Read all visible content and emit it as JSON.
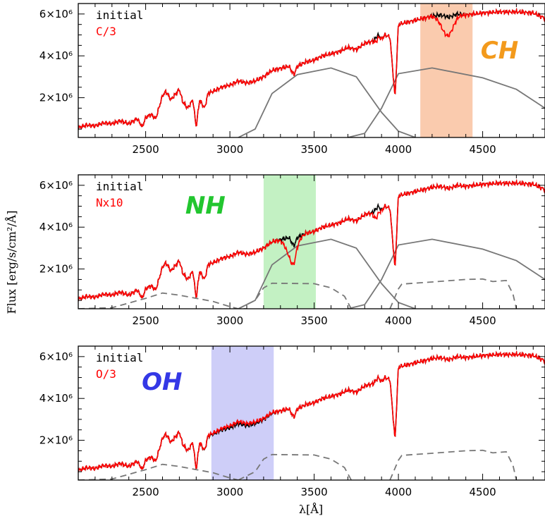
{
  "figure": {
    "ylabel": "Flux [erg/s/cm²/Å]",
    "xlabel": "λ[Å]"
  },
  "chart_data": [
    {
      "type": "line",
      "xlim": [
        2100,
        4870
      ],
      "ylim": [
        100000,
        6500000
      ],
      "xticks": [
        2500,
        3000,
        3500,
        4000,
        4500
      ],
      "yticks": [
        {
          "value": 2000000,
          "label": "2×10⁶"
        },
        {
          "value": 4000000,
          "label": "4×10⁶"
        },
        {
          "value": 6000000,
          "label": "6×10⁶"
        }
      ],
      "legend": [
        {
          "label": "initial",
          "color": "#000000"
        },
        {
          "label": "C/3",
          "color": "#ff0000"
        }
      ],
      "band": {
        "label": "CH",
        "x0": 4130,
        "x1": 4440,
        "color": "#f7a878",
        "label_color": "#f39a1c"
      },
      "mod": {
        "feature_x": 4290,
        "feature_w": 50,
        "depth": 900000,
        "feature2_x": 3870,
        "feature2_w": 15,
        "depth2": 200000
      },
      "filters": [
        {
          "style": "solid",
          "x": [
            3050,
            3150,
            3250,
            3400,
            3600,
            3750,
            3900,
            4000,
            4100
          ],
          "y": [
            100000,
            500000,
            2200000,
            3100000,
            3420000,
            3000000,
            1300000,
            400000,
            100000
          ]
        },
        {
          "style": "solid",
          "x": [
            3700,
            3800,
            3900,
            4000,
            4200,
            4500,
            4700,
            4870
          ],
          "y": [
            100000,
            300000,
            1500000,
            3150000,
            3420000,
            2950000,
            2400000,
            1500000
          ]
        }
      ]
    },
    {
      "type": "line",
      "xlim": [
        2100,
        4870
      ],
      "ylim": [
        100000,
        6500000
      ],
      "xticks": [
        2500,
        3000,
        3500,
        4000,
        4500
      ],
      "yticks": [
        {
          "value": 2000000,
          "label": "2×10⁶"
        },
        {
          "value": 4000000,
          "label": "4×10⁶"
        },
        {
          "value": 6000000,
          "label": "6×10⁶"
        }
      ],
      "legend": [
        {
          "label": "initial",
          "color": "#000000"
        },
        {
          "label": "Nx10",
          "color": "#ff0000"
        }
      ],
      "band": {
        "label": "NH",
        "x0": 3200,
        "x1": 3510,
        "color": "#9be89b",
        "label_color": "#22c62f"
      },
      "mod": {
        "feature_x": 3365,
        "feature_w": 40,
        "depth": 1000000,
        "feature2_x": 3870,
        "feature2_w": 20,
        "depth2": 450000
      },
      "filters": [
        {
          "style": "solid",
          "x": [
            3050,
            3150,
            3250,
            3400,
            3600,
            3750,
            3900,
            4000,
            4100
          ],
          "y": [
            100000,
            500000,
            2200000,
            3100000,
            3420000,
            3000000,
            1300000,
            400000,
            100000
          ]
        },
        {
          "style": "solid",
          "x": [
            3700,
            3800,
            3900,
            4000,
            4200,
            4500,
            4700,
            4870
          ],
          "y": [
            100000,
            300000,
            1500000,
            3150000,
            3420000,
            2950000,
            2400000,
            1500000
          ]
        },
        {
          "style": "dashed",
          "x": [
            2100,
            2300,
            2500,
            2600,
            2700,
            2900,
            3000,
            3050,
            3100
          ],
          "y": [
            100000,
            150000,
            600000,
            850000,
            750000,
            450000,
            200000,
            100000,
            100000
          ]
        },
        {
          "style": "dashed",
          "x": [
            3050,
            3150,
            3200,
            3250,
            3500,
            3600,
            3680,
            3720
          ],
          "y": [
            100000,
            500000,
            1100000,
            1320000,
            1300000,
            1100000,
            700000,
            100000
          ]
        },
        {
          "style": "dashed",
          "x": [
            3950,
            4000,
            4020,
            4200,
            4400,
            4500,
            4560,
            4640,
            4680,
            4700
          ],
          "y": [
            100000,
            1050000,
            1280000,
            1380000,
            1500000,
            1520000,
            1400000,
            1450000,
            800000,
            100000
          ]
        }
      ]
    },
    {
      "type": "line",
      "xlim": [
        2100,
        4870
      ],
      "ylim": [
        100000,
        6500000
      ],
      "xticks": [
        2500,
        3000,
        3500,
        4000,
        4500
      ],
      "yticks": [
        {
          "value": 2000000,
          "label": "2×10⁶"
        },
        {
          "value": 4000000,
          "label": "4×10⁶"
        },
        {
          "value": 6000000,
          "label": "6×10⁶"
        }
      ],
      "legend": [
        {
          "label": "initial",
          "color": "#000000"
        },
        {
          "label": "O/3",
          "color": "#ff0000"
        }
      ],
      "band": {
        "label": "OH",
        "x0": 2890,
        "x1": 3260,
        "color": "#aeaef4",
        "label_color": "#3438e6"
      },
      "mod": {
        "feature_x": 3060,
        "feature_w": 160,
        "depth": -100000,
        "feature2_x": 3870,
        "feature2_w": 10,
        "depth2": 0
      },
      "filters": [
        {
          "style": "dashed",
          "x": [
            2100,
            2300,
            2500,
            2600,
            2700,
            2900,
            3000,
            3050,
            3100
          ],
          "y": [
            100000,
            150000,
            600000,
            850000,
            750000,
            450000,
            200000,
            100000,
            100000
          ]
        },
        {
          "style": "dashed",
          "x": [
            3050,
            3150,
            3200,
            3250,
            3500,
            3600,
            3680,
            3720
          ],
          "y": [
            100000,
            500000,
            1100000,
            1320000,
            1300000,
            1100000,
            700000,
            100000
          ]
        },
        {
          "style": "dashed",
          "x": [
            3950,
            4000,
            4020,
            4200,
            4400,
            4500,
            4560,
            4640,
            4680,
            4700
          ],
          "y": [
            100000,
            1050000,
            1280000,
            1380000,
            1500000,
            1520000,
            1400000,
            1450000,
            800000,
            100000
          ]
        }
      ]
    }
  ],
  "base_spectrum": {
    "x": [
      2100,
      2150,
      2200,
      2250,
      2300,
      2350,
      2400,
      2450,
      2480,
      2500,
      2530,
      2560,
      2600,
      2620,
      2650,
      2700,
      2720,
      2750,
      2780,
      2800,
      2820,
      2850,
      2870,
      2900,
      2950,
      3000,
      3050,
      3100,
      3150,
      3200,
      3250,
      3300,
      3350,
      3380,
      3400,
      3450,
      3500,
      3550,
      3600,
      3650,
      3700,
      3750,
      3800,
      3850,
      3880,
      3900,
      3920,
      3950,
      3980,
      4000,
      4050,
      4100,
      4150,
      4200,
      4250,
      4300,
      4350,
      4400,
      4500,
      4600,
      4700,
      4800,
      4870
    ],
    "y": [
      550000,
      700000,
      650000,
      800000,
      750000,
      900000,
      750000,
      1000000,
      600000,
      1050000,
      1200000,
      1000000,
      2100000,
      2300000,
      1900000,
      2400000,
      1800000,
      1500000,
      1900000,
      600000,
      1900000,
      1500000,
      2200000,
      2300000,
      2500000,
      2600000,
      2800000,
      2700000,
      2800000,
      3000000,
      3300000,
      3400000,
      3500000,
      3100000,
      3500000,
      3700000,
      3800000,
      4000000,
      4100000,
      4200000,
      4400000,
      4300000,
      4600000,
      4700000,
      5000000,
      4800000,
      5000000,
      4900000,
      2000000,
      5500000,
      5600000,
      5700000,
      5800000,
      5900000,
      5950000,
      5850000,
      6000000,
      5950000,
      6050000,
      6100000,
      6100000,
      6050000,
      5800000
    ]
  }
}
